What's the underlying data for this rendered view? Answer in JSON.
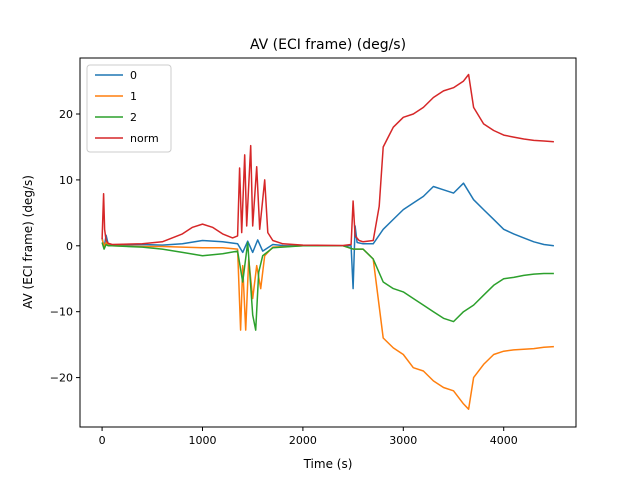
{
  "chart_data": {
    "type": "line",
    "title": "AV (ECI frame) (deg/s)",
    "xlabel": "Time (s)",
    "ylabel": "AV (ECI frame) (deg/s)",
    "xlim": [
      -220,
      4720
    ],
    "ylim": [
      -27.5,
      28.5
    ],
    "xticks": [
      0,
      1000,
      2000,
      3000,
      4000
    ],
    "yticks": [
      -20,
      -10,
      0,
      10,
      20
    ],
    "grid": false,
    "legend_position": "top-left",
    "series": [
      {
        "name": "0",
        "color": "#1f77b4",
        "points": [
          [
            0,
            1.2
          ],
          [
            20,
            -0.3
          ],
          [
            40,
            1.6
          ],
          [
            60,
            0.3
          ],
          [
            100,
            0.1
          ],
          [
            400,
            0.2
          ],
          [
            600,
            0.1
          ],
          [
            800,
            0.3
          ],
          [
            1000,
            0.8
          ],
          [
            1200,
            0.6
          ],
          [
            1350,
            0.3
          ],
          [
            1400,
            -1.0
          ],
          [
            1450,
            0.7
          ],
          [
            1500,
            -1.0
          ],
          [
            1550,
            0.9
          ],
          [
            1600,
            -0.8
          ],
          [
            1700,
            0.2
          ],
          [
            1800,
            0.05
          ],
          [
            2000,
            0
          ],
          [
            2400,
            0
          ],
          [
            2480,
            0
          ],
          [
            2500,
            -6.5
          ],
          [
            2520,
            3.0
          ],
          [
            2540,
            0.5
          ],
          [
            2600,
            0.3
          ],
          [
            2700,
            0.3
          ],
          [
            2800,
            2.5
          ],
          [
            2900,
            4.0
          ],
          [
            3000,
            5.5
          ],
          [
            3100,
            6.5
          ],
          [
            3200,
            7.5
          ],
          [
            3300,
            9.0
          ],
          [
            3400,
            8.5
          ],
          [
            3500,
            8.0
          ],
          [
            3600,
            9.5
          ],
          [
            3700,
            7.0
          ],
          [
            3800,
            5.5
          ],
          [
            3900,
            4.0
          ],
          [
            4000,
            2.5
          ],
          [
            4100,
            1.8
          ],
          [
            4200,
            1.2
          ],
          [
            4300,
            0.6
          ],
          [
            4400,
            0.2
          ],
          [
            4500,
            0.0
          ]
        ]
      },
      {
        "name": "1",
        "color": "#ff7f0e",
        "points": [
          [
            0,
            1.0
          ],
          [
            20,
            0.0
          ],
          [
            40,
            0.5
          ],
          [
            60,
            0.1
          ],
          [
            100,
            0
          ],
          [
            400,
            -0.1
          ],
          [
            600,
            -0.1
          ],
          [
            800,
            -0.2
          ],
          [
            1000,
            -0.3
          ],
          [
            1200,
            -0.3
          ],
          [
            1350,
            -0.5
          ],
          [
            1380,
            -12.8
          ],
          [
            1400,
            -3.0
          ],
          [
            1430,
            -12.8
          ],
          [
            1460,
            -2.0
          ],
          [
            1500,
            -8.0
          ],
          [
            1540,
            -3.0
          ],
          [
            1580,
            -6.5
          ],
          [
            1620,
            -1.5
          ],
          [
            1700,
            -0.2
          ],
          [
            2000,
            0
          ],
          [
            2400,
            0
          ],
          [
            2500,
            -0.5
          ],
          [
            2600,
            -0.5
          ],
          [
            2700,
            -2.0
          ],
          [
            2750,
            -8.0
          ],
          [
            2800,
            -14.0
          ],
          [
            2900,
            -15.5
          ],
          [
            3000,
            -16.5
          ],
          [
            3100,
            -18.5
          ],
          [
            3200,
            -19.0
          ],
          [
            3300,
            -20.5
          ],
          [
            3400,
            -21.5
          ],
          [
            3500,
            -22.0
          ],
          [
            3600,
            -24.0
          ],
          [
            3650,
            -24.8
          ],
          [
            3700,
            -20.0
          ],
          [
            3800,
            -18.0
          ],
          [
            3900,
            -16.5
          ],
          [
            4000,
            -16.0
          ],
          [
            4100,
            -15.8
          ],
          [
            4200,
            -15.7
          ],
          [
            4300,
            -15.6
          ],
          [
            4400,
            -15.4
          ],
          [
            4500,
            -15.3
          ]
        ]
      },
      {
        "name": "2",
        "color": "#2ca02c",
        "points": [
          [
            0,
            0.5
          ],
          [
            20,
            -0.5
          ],
          [
            40,
            0.2
          ],
          [
            60,
            0
          ],
          [
            100,
            0
          ],
          [
            400,
            -0.2
          ],
          [
            600,
            -0.5
          ],
          [
            800,
            -1.0
          ],
          [
            1000,
            -1.5
          ],
          [
            1200,
            -1.2
          ],
          [
            1350,
            -0.8
          ],
          [
            1400,
            -5.5
          ],
          [
            1450,
            0.5
          ],
          [
            1500,
            -10.5
          ],
          [
            1530,
            -12.8
          ],
          [
            1560,
            -4.0
          ],
          [
            1600,
            -1.5
          ],
          [
            1700,
            -0.3
          ],
          [
            2000,
            0
          ],
          [
            2400,
            0
          ],
          [
            2500,
            -0.5
          ],
          [
            2600,
            -0.5
          ],
          [
            2700,
            -2.0
          ],
          [
            2800,
            -5.5
          ],
          [
            2900,
            -6.5
          ],
          [
            3000,
            -7.0
          ],
          [
            3100,
            -8.0
          ],
          [
            3200,
            -9.0
          ],
          [
            3300,
            -10.0
          ],
          [
            3400,
            -11.0
          ],
          [
            3500,
            -11.5
          ],
          [
            3600,
            -10.0
          ],
          [
            3700,
            -9.0
          ],
          [
            3800,
            -7.5
          ],
          [
            3900,
            -6.0
          ],
          [
            4000,
            -5.0
          ],
          [
            4100,
            -4.8
          ],
          [
            4200,
            -4.5
          ],
          [
            4300,
            -4.3
          ],
          [
            4400,
            -4.2
          ],
          [
            4500,
            -4.2
          ]
        ]
      },
      {
        "name": "norm",
        "color": "#d62728",
        "points": [
          [
            0,
            1.0
          ],
          [
            15,
            7.9
          ],
          [
            25,
            2.5
          ],
          [
            40,
            0.8
          ],
          [
            60,
            0.4
          ],
          [
            100,
            0.2
          ],
          [
            400,
            0.3
          ],
          [
            600,
            0.6
          ],
          [
            800,
            1.8
          ],
          [
            900,
            2.8
          ],
          [
            1000,
            3.3
          ],
          [
            1100,
            2.8
          ],
          [
            1200,
            1.8
          ],
          [
            1300,
            1.2
          ],
          [
            1350,
            1.5
          ],
          [
            1370,
            11.8
          ],
          [
            1390,
            2.0
          ],
          [
            1420,
            13.8
          ],
          [
            1440,
            3.0
          ],
          [
            1480,
            15.2
          ],
          [
            1500,
            3.0
          ],
          [
            1540,
            12.0
          ],
          [
            1570,
            2.5
          ],
          [
            1620,
            10.0
          ],
          [
            1650,
            2.0
          ],
          [
            1700,
            0.8
          ],
          [
            1800,
            0.3
          ],
          [
            2000,
            0.1
          ],
          [
            2400,
            0.05
          ],
          [
            2480,
            0.2
          ],
          [
            2500,
            6.8
          ],
          [
            2520,
            1.5
          ],
          [
            2560,
            0.8
          ],
          [
            2600,
            0.6
          ],
          [
            2700,
            0.8
          ],
          [
            2760,
            6.0
          ],
          [
            2800,
            15.0
          ],
          [
            2850,
            16.5
          ],
          [
            2900,
            18.0
          ],
          [
            3000,
            19.5
          ],
          [
            3100,
            20.0
          ],
          [
            3200,
            21.0
          ],
          [
            3300,
            22.5
          ],
          [
            3400,
            23.5
          ],
          [
            3500,
            24.0
          ],
          [
            3600,
            25.0
          ],
          [
            3650,
            26.0
          ],
          [
            3700,
            21.0
          ],
          [
            3800,
            18.5
          ],
          [
            3900,
            17.5
          ],
          [
            4000,
            16.8
          ],
          [
            4100,
            16.5
          ],
          [
            4200,
            16.2
          ],
          [
            4300,
            16.0
          ],
          [
            4400,
            15.9
          ],
          [
            4500,
            15.8
          ]
        ]
      }
    ]
  }
}
